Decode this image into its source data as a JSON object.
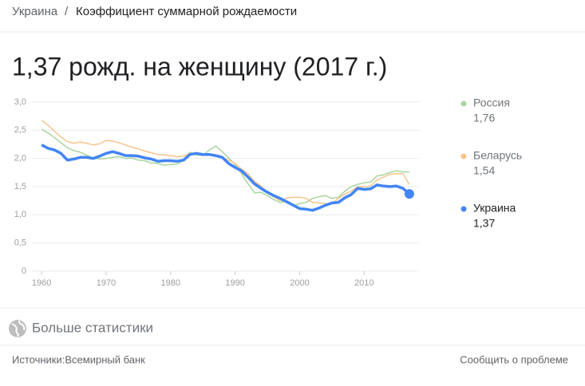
{
  "breadcrumb": [
    "Украина",
    "Коэффициент суммарной рождаемости"
  ],
  "more_stats": "Больше статистики",
  "footer": {
    "sources": "Источники:Всемирный банк",
    "report": "Сообщить о проблеме"
  },
  "chart_data": {
    "type": "line",
    "title": "1,37 рожд. на женщину (2017 г.)",
    "x": [
      1960,
      1961,
      1962,
      1963,
      1964,
      1965,
      1966,
      1967,
      1968,
      1969,
      1970,
      1971,
      1972,
      1973,
      1974,
      1975,
      1976,
      1977,
      1978,
      1979,
      1980,
      1981,
      1982,
      1983,
      1984,
      1985,
      1986,
      1987,
      1988,
      1989,
      1990,
      1991,
      1992,
      1993,
      1994,
      1995,
      1996,
      1997,
      1998,
      1999,
      2000,
      2001,
      2002,
      2003,
      2004,
      2005,
      2006,
      2007,
      2008,
      2009,
      2010,
      2011,
      2012,
      2013,
      2014,
      2015,
      2016,
      2017
    ],
    "series": [
      {
        "name": "Россия",
        "color": "#a8d59e",
        "legend_value": "1,76",
        "values": [
          2.52,
          2.45,
          2.37,
          2.28,
          2.19,
          2.14,
          2.11,
          2.06,
          2.01,
          1.99,
          2.0,
          2.02,
          2.03,
          2.0,
          2.01,
          1.97,
          1.96,
          1.92,
          1.91,
          1.88,
          1.89,
          1.9,
          1.96,
          2.11,
          2.06,
          2.05,
          2.15,
          2.22,
          2.12,
          2.01,
          1.89,
          1.73,
          1.55,
          1.39,
          1.4,
          1.34,
          1.27,
          1.22,
          1.24,
          1.16,
          1.2,
          1.22,
          1.29,
          1.32,
          1.34,
          1.29,
          1.31,
          1.42,
          1.5,
          1.54,
          1.57,
          1.58,
          1.69,
          1.71,
          1.75,
          1.78,
          1.76,
          1.76
        ]
      },
      {
        "name": "Беларусь",
        "color": "#f8c48c",
        "legend_value": "1,54",
        "values": [
          2.68,
          2.59,
          2.48,
          2.38,
          2.3,
          2.27,
          2.29,
          2.27,
          2.24,
          2.26,
          2.32,
          2.31,
          2.28,
          2.24,
          2.2,
          2.17,
          2.13,
          2.1,
          2.07,
          2.06,
          2.05,
          2.03,
          2.04,
          2.09,
          2.1,
          2.08,
          2.08,
          2.03,
          2.02,
          1.97,
          1.91,
          1.81,
          1.73,
          1.59,
          1.51,
          1.39,
          1.32,
          1.25,
          1.3,
          1.31,
          1.31,
          1.29,
          1.22,
          1.21,
          1.2,
          1.2,
          1.29,
          1.37,
          1.42,
          1.5,
          1.5,
          1.51,
          1.62,
          1.67,
          1.72,
          1.73,
          1.73,
          1.54
        ]
      },
      {
        "name": "Украина",
        "color": "#4285f4",
        "legend_value": "1,37",
        "values": [
          2.24,
          2.18,
          2.15,
          2.09,
          1.97,
          1.99,
          2.02,
          2.02,
          2.0,
          2.04,
          2.09,
          2.12,
          2.09,
          2.05,
          2.05,
          2.04,
          2.01,
          1.99,
          1.95,
          1.96,
          1.96,
          1.95,
          1.97,
          2.07,
          2.09,
          2.07,
          2.07,
          2.05,
          2.02,
          1.91,
          1.84,
          1.78,
          1.67,
          1.55,
          1.47,
          1.4,
          1.34,
          1.29,
          1.23,
          1.17,
          1.11,
          1.1,
          1.08,
          1.12,
          1.17,
          1.21,
          1.22,
          1.3,
          1.36,
          1.47,
          1.45,
          1.46,
          1.53,
          1.51,
          1.5,
          1.51,
          1.47,
          1.37
        ]
      }
    ],
    "xlim": [
      1958.5,
      2018.5
    ],
    "xticks": [
      1960,
      1970,
      1980,
      1990,
      2000,
      2010
    ],
    "ylim": [
      0,
      3
    ],
    "yticks": [
      0,
      {
        "value": 0.5,
        "label": "0,5"
      },
      {
        "value": 1,
        "label": "1,0"
      },
      {
        "value": 1.5,
        "label": "1,5"
      },
      {
        "value": 2,
        "label": "2,0"
      },
      {
        "value": 2.5,
        "label": "2,5"
      },
      {
        "value": 3,
        "label": "3,0"
      }
    ],
    "grid": true
  }
}
